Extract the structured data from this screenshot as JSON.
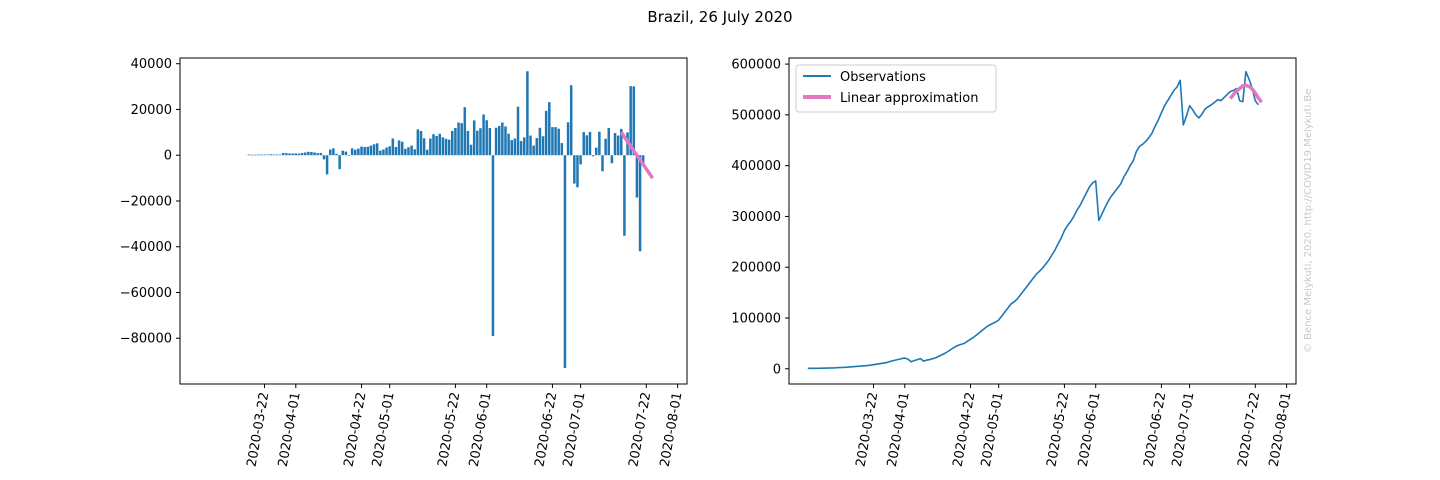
{
  "figure": {
    "title": "Brazil, 26 July 2020",
    "watermark": "© Bence Melykuti, 2020. http://COVID19.Melykuti.Be"
  },
  "colors": {
    "observations": "#1f77b4",
    "approximation": "#e377c2",
    "watermark": "#c8c8c8"
  },
  "chart_data": [
    {
      "type": "bar",
      "title": "",
      "xlabel": "",
      "ylabel": "",
      "x_ticks": [
        "2020-03-22",
        "2020-04-01",
        "2020-04-22",
        "2020-05-01",
        "2020-05-22",
        "2020-06-01",
        "2020-06-22",
        "2020-07-01",
        "2020-07-22",
        "2020-08-01"
      ],
      "y_ticks": [
        40000,
        20000,
        0,
        -20000,
        -40000,
        -60000,
        -80000
      ],
      "y_tick_labels": [
        "40000",
        "20000",
        "0",
        "−20000",
        "−40000",
        "−60000",
        "−80000"
      ],
      "xlim": [
        "2020-02-24",
        "2020-08-04"
      ],
      "ylim": [
        -100000,
        42500
      ],
      "grid": false,
      "start_date": "2020-03-17",
      "series": [
        {
          "values": [
            300,
            200,
            200,
            300,
            300,
            300,
            300,
            400,
            300,
            300,
            300,
            1000,
            900,
            800,
            700,
            800,
            700,
            1000,
            1200,
            1500,
            1400,
            1200,
            900,
            1000,
            -1800,
            -8400,
            2500,
            3000,
            600,
            -6100,
            2000,
            1600,
            100,
            3000,
            2400,
            2900,
            3800,
            3600,
            3700,
            4200,
            4800,
            5200,
            2000,
            2500,
            3400,
            3900,
            7300,
            3600,
            6500,
            5900,
            2800,
            3500,
            4200,
            2600,
            11300,
            10600,
            7400,
            2400,
            7300,
            9200,
            8400,
            9400,
            7800,
            7200,
            6800,
            10600,
            11900,
            14300,
            14000,
            21000,
            10600,
            4600,
            15200,
            10700,
            11800,
            17800,
            15300,
            11900,
            -79000,
            12000,
            12800,
            14300,
            12600,
            9400,
            6600,
            7300,
            21200,
            6200,
            7800,
            36700,
            8600,
            4200,
            7500,
            12000,
            8300,
            19400,
            23200,
            12300,
            12300,
            11600,
            5300,
            -93000,
            14400,
            30600,
            -12400,
            -14000,
            -4000,
            10100,
            8700,
            10200,
            -500,
            3300,
            10300,
            -7000,
            7200,
            11900,
            -3500,
            9700,
            8600,
            11500,
            -35200,
            10000,
            30200,
            30100,
            -18500,
            -42000,
            -4000
          ]
        }
      ],
      "approximation": {
        "from": "2020-07-14",
        "to": "2020-07-24",
        "y_from": 10000,
        "y_to": -10000
      }
    },
    {
      "type": "line",
      "title": "",
      "xlabel": "",
      "ylabel": "",
      "x_ticks": [
        "2020-03-22",
        "2020-04-01",
        "2020-04-22",
        "2020-05-01",
        "2020-05-22",
        "2020-06-01",
        "2020-06-22",
        "2020-07-01",
        "2020-07-22",
        "2020-08-01"
      ],
      "y_ticks": [
        0,
        100000,
        200000,
        300000,
        400000,
        500000,
        600000
      ],
      "y_tick_labels": [
        "0",
        "100000",
        "200000",
        "300000",
        "400000",
        "500000",
        "600000"
      ],
      "xlim": [
        "2020-02-24",
        "2020-08-04"
      ],
      "ylim": [
        -30000,
        612000
      ],
      "grid": false,
      "legend": "top-left",
      "series": [
        {
          "name": "Observations",
          "start_date": "2020-03-01",
          "values": [
            1000,
            1000,
            1000,
            1000,
            1100,
            1200,
            1300,
            1500,
            1700,
            1900,
            2200,
            2500,
            2900,
            3300,
            3800,
            4300,
            4800,
            5300,
            5800,
            6300,
            7000,
            8000,
            9000,
            10000,
            11000,
            12000,
            14000,
            15500,
            17000,
            18500,
            20000,
            21000,
            19000,
            14000,
            16000,
            18000,
            20000,
            15000,
            17000,
            18000,
            20000,
            22000,
            25000,
            28000,
            31000,
            35000,
            39000,
            43000,
            46000,
            48000,
            50000,
            54000,
            58000,
            62000,
            67000,
            72000,
            77000,
            82000,
            86000,
            89000,
            92000,
            96000,
            104000,
            112000,
            120000,
            128000,
            132000,
            138000,
            146000,
            154000,
            162000,
            170000,
            178000,
            186000,
            192000,
            198000,
            206000,
            214000,
            224000,
            234000,
            246000,
            258000,
            272000,
            282000,
            290000,
            300000,
            312000,
            322000,
            334000,
            346000,
            358000,
            366000,
            370000,
            292000,
            305000,
            318000,
            330000,
            340000,
            348000,
            356000,
            364000,
            378000,
            388000,
            400000,
            410000,
            428000,
            438000,
            442000,
            448000,
            455000,
            464000,
            478000,
            490000,
            504000,
            518000,
            528000,
            538000,
            548000,
            555000,
            568000,
            480000,
            498000,
            518000,
            510000,
            500000,
            494000,
            502000,
            512000,
            516000,
            520000,
            525000,
            530000,
            528000,
            534000,
            540000,
            546000,
            548000,
            552000,
            528000,
            526000,
            585000,
            570000,
            552000,
            528000,
            520000
          ]
        },
        {
          "name": "Linear approximation",
          "start_date": "2020-07-14",
          "values": [
            532000,
            540000,
            547000,
            552000,
            557000,
            558000,
            556000,
            551000,
            543000,
            533000,
            525000
          ]
        }
      ]
    }
  ]
}
